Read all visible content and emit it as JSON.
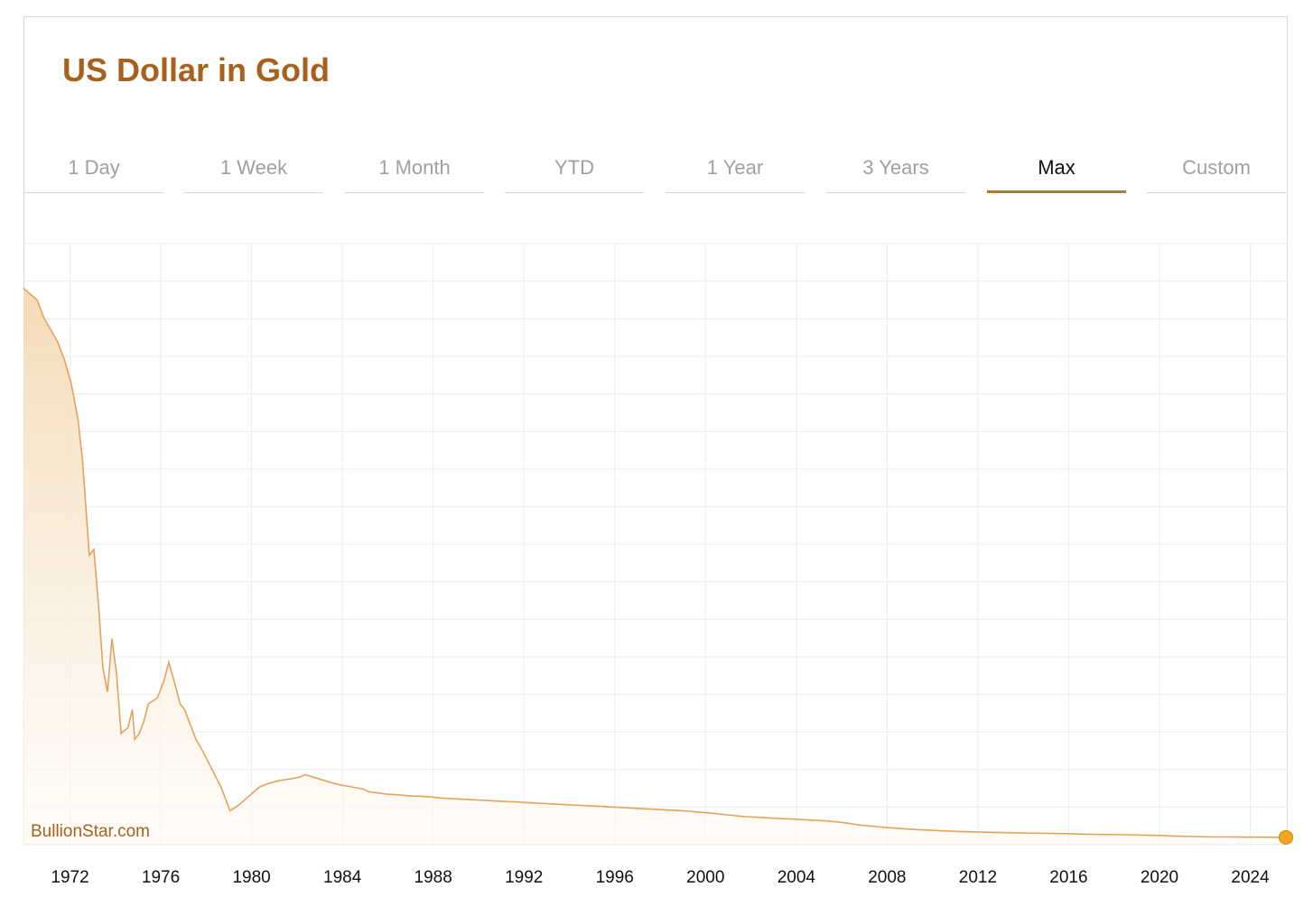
{
  "header": {
    "title": "US Dollar in Gold"
  },
  "tabs": [
    {
      "label": "1 Day",
      "active": false
    },
    {
      "label": "1 Week",
      "active": false
    },
    {
      "label": "1 Month",
      "active": false
    },
    {
      "label": "YTD",
      "active": false
    },
    {
      "label": "1 Year",
      "active": false
    },
    {
      "label": "3 Years",
      "active": false
    },
    {
      "label": "Max",
      "active": true
    },
    {
      "label": "Custom",
      "active": false
    }
  ],
  "watermark": "BullionStar.com",
  "colors": {
    "accent": "#c0701f",
    "title": "#a6611f",
    "line": "#e3a35c",
    "fill_top": "#f4d9b4",
    "marker": "#f5a623"
  },
  "chart_data": {
    "type": "area",
    "title": "",
    "xlabel": "",
    "ylabel": "",
    "x_ticks": [
      "1972",
      "1976",
      "1980",
      "1984",
      "1988",
      "1992",
      "1996",
      "2000",
      "2004",
      "2008",
      "2012",
      "2016",
      "2020",
      "2024"
    ],
    "xlim": [
      1970.0,
      2025.7
    ],
    "ylim": [
      0,
      1.0
    ],
    "y_tick_labels_shown": false,
    "grid": true,
    "legend": "none",
    "series": [
      {
        "x": [
          1970.0,
          1970.3,
          1970.6,
          1970.9,
          1971.2,
          1971.5,
          1971.8,
          1972.1,
          1972.4,
          1972.6,
          1972.9,
          1973.1,
          1973.3,
          1973.5,
          1973.7,
          1973.9,
          1974.1,
          1974.3,
          1974.6,
          1974.8,
          1974.9,
          1975.1,
          1975.3,
          1975.5,
          1975.9,
          1976.2,
          1976.4,
          1976.7,
          1976.9,
          1977.1,
          1977.3,
          1977.6,
          1977.9,
          1978.3,
          1978.7,
          1979.1,
          1979.5,
          1979.8,
          1980.1,
          1980.4,
          1980.8,
          1981.3,
          1981.8,
          1982.2,
          1982.4,
          1982.9,
          1983.5,
          1984.0,
          1984.5,
          1985.0,
          1985.2,
          1985.6,
          1986.0,
          1986.4,
          1987.0,
          1987.6,
          1988.0,
          1988.5,
          1989.0,
          1989.6,
          1990.0,
          1990.5,
          1991.0,
          1991.6,
          1992.0,
          1992.5,
          1993.0,
          1993.5,
          1994.0,
          1994.6,
          1995.0,
          1995.6,
          1996.0,
          1996.5,
          1997.0,
          1997.5,
          1998.0,
          1998.5,
          1999.0,
          1999.3,
          1999.6,
          2000.0,
          2000.5,
          2001.0,
          2001.3,
          2001.8,
          2002.3,
          2002.8,
          2003.2,
          2003.8,
          2004.3,
          2004.8,
          2005.3,
          2005.9,
          2006.3,
          2006.8,
          2007.4,
          2007.9,
          2008.3,
          2008.6,
          2009.0,
          2009.4,
          2010.0,
          2010.6,
          2011.2,
          2011.7,
          2012.2,
          2012.8,
          2013.3,
          2014.0,
          2015.0,
          2015.8,
          2016.3,
          2016.8,
          2017.5,
          2018.5,
          2019.2,
          2019.8,
          2020.3,
          2020.6,
          2021.0,
          2021.5,
          2022.0,
          2022.5,
          2023.0,
          2023.5,
          2024.0,
          2024.5,
          2025.0,
          2025.5,
          2025.7
        ],
        "y": [
          0.925,
          0.915,
          0.905,
          0.875,
          0.855,
          0.835,
          0.805,
          0.765,
          0.705,
          0.635,
          0.475,
          0.485,
          0.395,
          0.285,
          0.245,
          0.335,
          0.275,
          0.175,
          0.185,
          0.215,
          0.165,
          0.175,
          0.195,
          0.225,
          0.235,
          0.265,
          0.295,
          0.255,
          0.225,
          0.215,
          0.195,
          0.165,
          0.145,
          0.115,
          0.085,
          0.045,
          0.055,
          0.065,
          0.075,
          0.085,
          0.091,
          0.096,
          0.099,
          0.102,
          0.106,
          0.1,
          0.093,
          0.088,
          0.085,
          0.081,
          0.077,
          0.075,
          0.073,
          0.072,
          0.07,
          0.069,
          0.068,
          0.066,
          0.065,
          0.064,
          0.063,
          0.062,
          0.061,
          0.06,
          0.059,
          0.058,
          0.057,
          0.056,
          0.055,
          0.054,
          0.053,
          0.052,
          0.051,
          0.05,
          0.049,
          0.048,
          0.047,
          0.046,
          0.045,
          0.044,
          0.043,
          0.042,
          0.04,
          0.038,
          0.037,
          0.035,
          0.034,
          0.033,
          0.032,
          0.031,
          0.03,
          0.029,
          0.028,
          0.026,
          0.024,
          0.021,
          0.019,
          0.017,
          0.016,
          0.015,
          0.014,
          0.013,
          0.012,
          0.011,
          0.01,
          0.0095,
          0.009,
          0.0085,
          0.008,
          0.0075,
          0.007,
          0.0065,
          0.006,
          0.0055,
          0.005,
          0.0045,
          0.004,
          0.0035,
          0.003,
          0.0025,
          0.002,
          0.0015,
          0.001,
          0.0008,
          0.0007,
          0.0006,
          0.0005,
          0.0004,
          0.0003,
          0.0002,
          0.0001
        ]
      }
    ]
  }
}
